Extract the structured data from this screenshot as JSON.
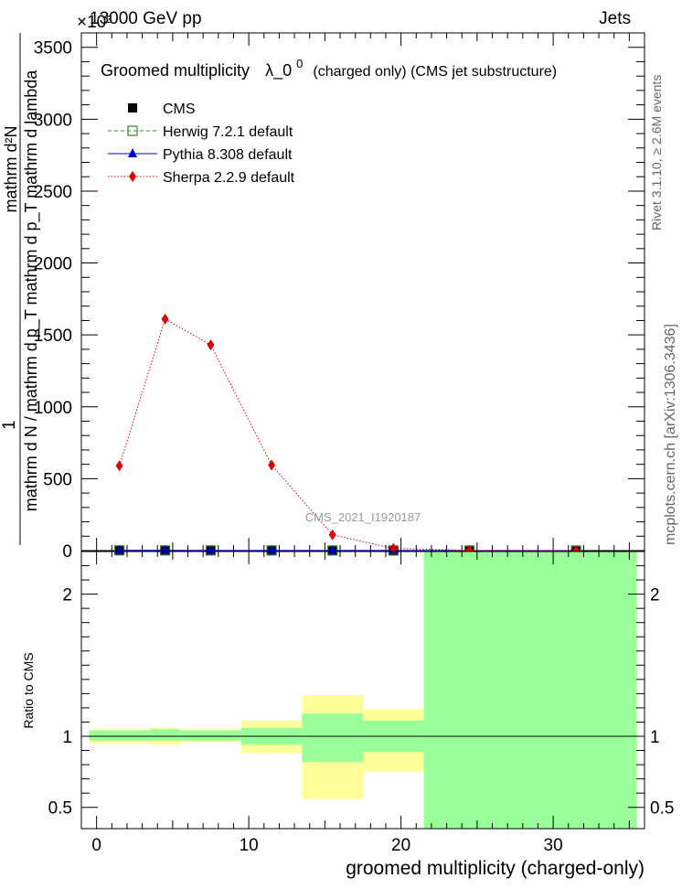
{
  "header": {
    "energy": "13000 GeV pp",
    "process": "Jets",
    "exponent": "×10³"
  },
  "side": {
    "rivet": "Rivet 3.1.10, ≥ 2.6M events",
    "mcplots": "mcplots.cern.ch [arXiv:1306.3436]"
  },
  "chart_data": {
    "type": "line",
    "title": "Groomed multiplicity",
    "title_lambda": "λ_0",
    "title_sup": "0",
    "title_suffix": "(charged only) (CMS jet substructure)",
    "ylabel_top": "1",
    "ylabel_num": "mathrm d²N",
    "ylabel_den": "mathrm d N / mathrm d p_T mathrm d p_T mathrm d lambda",
    "xlabel": "groomed multiplicity (charged-only)",
    "watermark": "CMS_2021_I1920187",
    "xlim": [
      -1,
      36
    ],
    "ylim": [
      0,
      3600
    ],
    "y_multiplier": 1000,
    "x_ticks": [
      0,
      10,
      20,
      30
    ],
    "x_tick_labels": [
      "0",
      "10",
      "20",
      "30"
    ],
    "y_ticks": [
      0,
      500,
      1000,
      1500,
      2000,
      2500,
      3000,
      3500
    ],
    "y_tick_labels": [
      "0",
      "500",
      "1000",
      "1500",
      "2000",
      "2500",
      "3000",
      "3500"
    ],
    "bin_edges": [
      -0.5,
      3.5,
      5.5,
      9.5,
      13.5,
      17.5,
      21.5,
      27.5,
      35.5
    ],
    "x": [
      1.5,
      4.5,
      7.5,
      11.5,
      15.5,
      19.5,
      24.5,
      31.5
    ],
    "legend": [
      {
        "name": "CMS",
        "color": "#000000",
        "marker": "square",
        "line": "none"
      },
      {
        "name": "Herwig 7.2.1 default",
        "color": "#2e8b22",
        "marker": "open-square",
        "line": "dashed"
      },
      {
        "name": "Pythia 8.308 default",
        "color": "#0000cc",
        "marker": "triangle",
        "line": "solid"
      },
      {
        "name": "Sherpa 2.2.9 default",
        "color": "#dd0000",
        "marker": "diamond",
        "line": "dotted"
      }
    ],
    "series": [
      {
        "name": "CMS",
        "values": [
          1.5,
          1.2,
          1.0,
          0.9,
          0.6,
          0.4,
          0.25,
          0.1
        ]
      },
      {
        "name": "Herwig 7.2.1 default",
        "values": [
          1.5,
          1.2,
          1.0,
          0.9,
          0.6,
          0.4,
          0.25,
          0.1
        ]
      },
      {
        "name": "Pythia 8.308 default",
        "values": [
          1.5,
          1.2,
          1.0,
          0.9,
          0.6,
          0.4,
          0.25,
          0.1
        ]
      },
      {
        "name": "Sherpa 2.2.9 default",
        "values": [
          590,
          1610,
          1430,
          595,
          110,
          15,
          2,
          0.3
        ]
      }
    ],
    "ratio": {
      "ylabel": "Ratio to CMS",
      "ylim": [
        0.35,
        2.3
      ],
      "y_ticks": [
        0.5,
        1,
        2
      ],
      "y_tick_labels": [
        "0.5",
        "1",
        "2"
      ],
      "bands": [
        {
          "bin": [
            -0.5,
            3.5
          ],
          "total": [
            0.95,
            1.05
          ],
          "stat": [
            0.97,
            1.04
          ]
        },
        {
          "bin": [
            3.5,
            5.5
          ],
          "total": [
            0.94,
            1.06
          ],
          "stat": [
            0.97,
            1.05
          ]
        },
        {
          "bin": [
            5.5,
            9.5
          ],
          "total": [
            0.96,
            1.05
          ],
          "stat": [
            0.97,
            1.04
          ]
        },
        {
          "bin": [
            9.5,
            13.5
          ],
          "total": [
            0.88,
            1.11
          ],
          "stat": [
            0.94,
            1.06
          ]
        },
        {
          "bin": [
            13.5,
            17.5
          ],
          "total": [
            0.56,
            1.29
          ],
          "stat": [
            0.82,
            1.16
          ]
        },
        {
          "bin": [
            17.5,
            21.5
          ],
          "total": [
            0.75,
            1.19
          ],
          "stat": [
            0.89,
            1.11
          ]
        },
        {
          "bin": [
            21.5,
            35.5
          ],
          "total": [
            0.35,
            2.3
          ],
          "stat": [
            0.35,
            2.3
          ]
        }
      ],
      "colors": {
        "total": "#ffff99",
        "stat": "#99ff99"
      }
    }
  }
}
